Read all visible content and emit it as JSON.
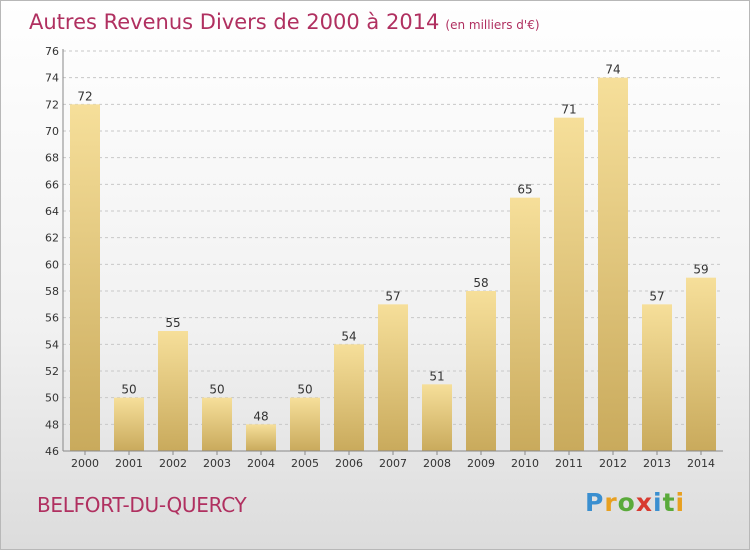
{
  "header": {
    "title": "Autres Revenus Divers de 2000 à 2014",
    "unit": "(en milliers d'€)"
  },
  "footer": {
    "city": "BELFORT-DU-QUERCY",
    "logo_letters": [
      "P",
      "r",
      "o",
      "x",
      "i",
      "t",
      "i"
    ],
    "logo_colors": [
      "#3a8fd0",
      "#e8a020",
      "#5aaa3a",
      "#d83a30",
      "#3a8fd0",
      "#5aaa3a",
      "#e8a020"
    ]
  },
  "colors": {
    "title": "#b03060",
    "bar_light": "#f6df9a",
    "bar_dark": "#c9aa5c",
    "grid": "#c8c8c8",
    "text": "#333333"
  },
  "chart_data": {
    "type": "bar",
    "categories": [
      "2000",
      "2001",
      "2002",
      "2003",
      "2004",
      "2005",
      "2006",
      "2007",
      "2008",
      "2009",
      "2010",
      "2011",
      "2012",
      "2013",
      "2014"
    ],
    "values": [
      72,
      50,
      55,
      50,
      48,
      50,
      54,
      57,
      51,
      58,
      65,
      71,
      74,
      57,
      59
    ],
    "ylim": [
      46,
      76
    ],
    "yticks": [
      46,
      48,
      50,
      52,
      54,
      56,
      58,
      60,
      62,
      64,
      66,
      68,
      70,
      72,
      74,
      76
    ],
    "grid": true,
    "title": "Autres Revenus Divers de 2000 à 2014",
    "xlabel": "",
    "ylabel": ""
  }
}
